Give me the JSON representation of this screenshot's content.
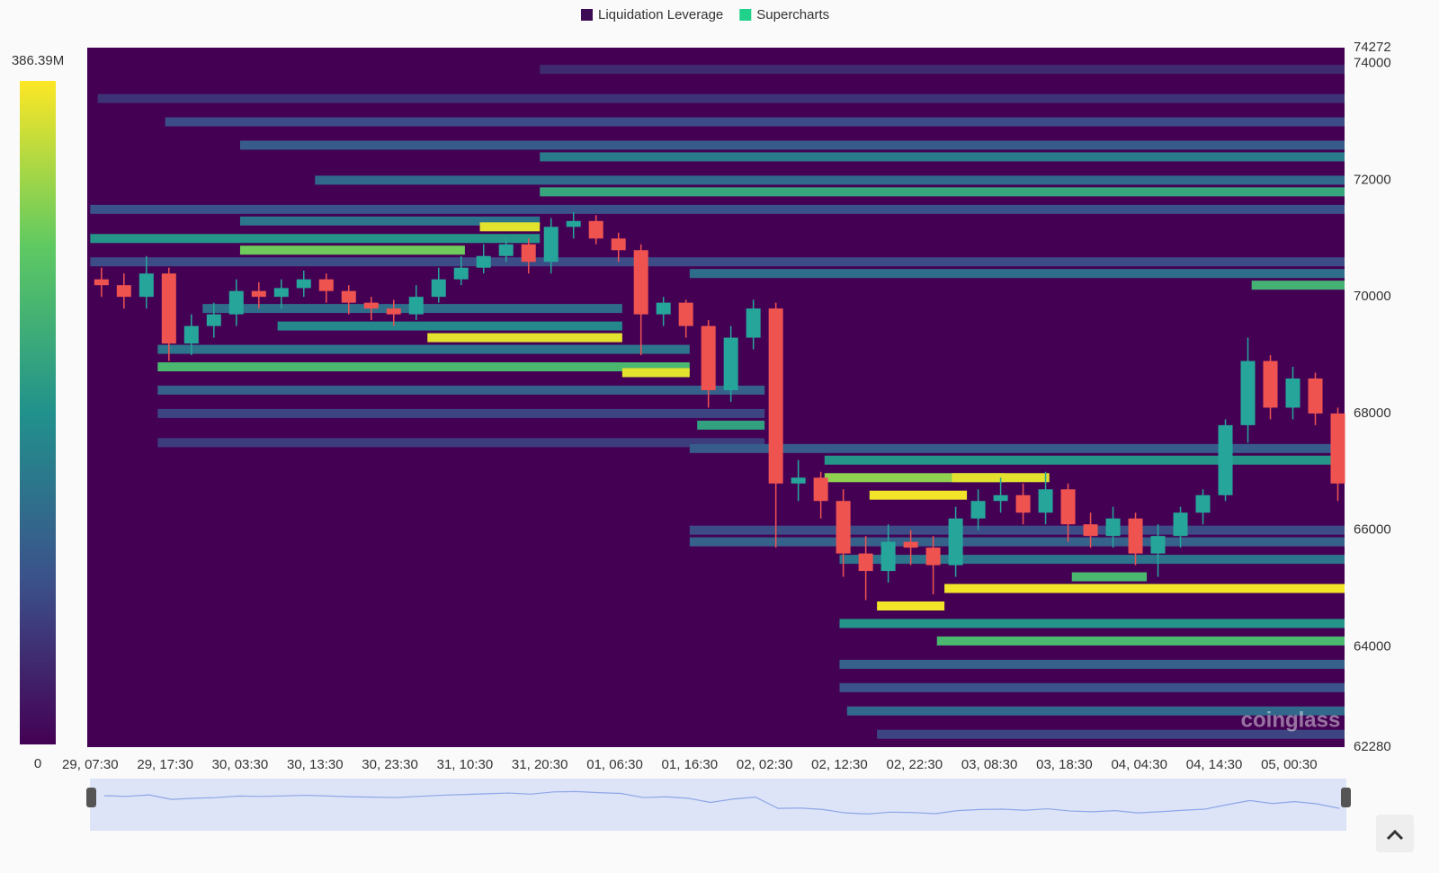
{
  "chart_data": {
    "type": "liquidation-heatmap",
    "legend": [
      {
        "name": "Liquidation Leverage",
        "color": "#3d0a55"
      },
      {
        "name": "Supercharts",
        "color": "#1fd18a"
      }
    ],
    "watermark": "coinglass",
    "colorbar": {
      "ticks": [
        0,
        {
          "value": 386.39,
          "label": "386.39M"
        }
      ],
      "colors": [
        "#440154",
        "#3b528b",
        "#21918c",
        "#5ec962",
        "#fde725"
      ]
    },
    "xlim": [
      -0.4,
      167.4
    ],
    "xticks": [
      {
        "value": 0,
        "label": "29, 07:30"
      },
      {
        "value": 10,
        "label": "29, 17:30"
      },
      {
        "value": 20,
        "label": "30, 03:30"
      },
      {
        "value": 30,
        "label": "30, 13:30"
      },
      {
        "value": 40,
        "label": "30, 23:30"
      },
      {
        "value": 50,
        "label": "31, 10:30"
      },
      {
        "value": 60,
        "label": "31, 20:30"
      },
      {
        "value": 70,
        "label": "01, 06:30"
      },
      {
        "value": 80,
        "label": "01, 16:30"
      },
      {
        "value": 90,
        "label": "02, 02:30"
      },
      {
        "value": 100,
        "label": "02, 12:30"
      },
      {
        "value": 110,
        "label": "02, 22:30"
      },
      {
        "value": 120,
        "label": "03, 08:30"
      },
      {
        "value": 130,
        "label": "03, 18:30"
      },
      {
        "value": 140,
        "label": "04, 04:30"
      },
      {
        "value": 150,
        "label": "04, 14:30"
      },
      {
        "value": 160,
        "label": "05, 00:30"
      }
    ],
    "ylim": [
      62280,
      74272
    ],
    "yticks": [
      62280,
      64000,
      66000,
      68000,
      70000,
      72000,
      74000,
      74272
    ],
    "bands": {
      "price": [
        73900,
        73400,
        73000,
        72600,
        72400,
        72000,
        71800,
        71500,
        71300,
        71200,
        71000,
        70800,
        70600,
        70400,
        70200,
        69800,
        69500,
        69300,
        69100,
        68800,
        68700,
        68400,
        68000,
        67800,
        67500,
        67400,
        67200,
        66900,
        66900,
        66600,
        66000,
        65800,
        65500,
        65200,
        65000,
        64700,
        64400,
        64100,
        63700,
        63300,
        62900,
        62500
      ],
      "start": [
        60,
        1,
        10,
        20,
        60,
        30,
        60,
        0,
        20,
        52,
        0,
        20,
        0,
        80,
        155,
        15,
        25,
        45,
        9,
        9,
        71,
        9,
        9,
        81,
        9,
        80,
        98,
        98,
        115,
        104,
        80,
        80,
        100,
        131,
        114,
        105,
        100,
        113,
        100,
        100,
        101,
        105
      ],
      "end": [
        167.4,
        167.4,
        167.4,
        167.4,
        167.4,
        167.4,
        167.4,
        167.4,
        60,
        60,
        60,
        50,
        167.4,
        167.4,
        167.4,
        71,
        71,
        71,
        80,
        80,
        80,
        90,
        90,
        90,
        90,
        167.4,
        167.4,
        122,
        128,
        117,
        167.4,
        167.4,
        167.4,
        141,
        167.4,
        114,
        167.4,
        167.4,
        167.4,
        167.4,
        167.4,
        167.4
      ],
      "values": [
        50,
        60,
        90,
        110,
        160,
        130,
        230,
        100,
        150,
        370,
        200,
        300,
        90,
        140,
        250,
        140,
        180,
        370,
        150,
        260,
        370,
        120,
        80,
        220,
        70,
        110,
        200,
        320,
        370,
        380,
        90,
        120,
        150,
        260,
        380,
        380,
        200,
        260,
        120,
        100,
        130,
        80
      ]
    },
    "candles": {
      "up_color": "#26a69a",
      "down_color": "#ef5350",
      "x": [
        1.5,
        4.5,
        7.5,
        10.5,
        13.5,
        16.5,
        19.5,
        22.5,
        25.5,
        28.5,
        31.5,
        34.5,
        37.5,
        40.5,
        43.5,
        46.5,
        49.5,
        52.5,
        55.5,
        58.5,
        61.5,
        64.5,
        67.5,
        70.5,
        73.5,
        76.5,
        79.5,
        82.5,
        85.5,
        88.5,
        91.5,
        94.5,
        97.5,
        100.5,
        103.5,
        106.5,
        109.5,
        112.5,
        115.5,
        118.5,
        121.5,
        124.5,
        127.5,
        130.5,
        133.5,
        136.5,
        139.5,
        142.5,
        145.5,
        148.5,
        151.5,
        154.5,
        157.5,
        160.5,
        163.5,
        166.5
      ],
      "open": [
        70300,
        70200,
        70000,
        70400,
        69200,
        69500,
        69700,
        70100,
        70000,
        70150,
        70300,
        70100,
        69900,
        69800,
        69700,
        70000,
        70300,
        70500,
        70700,
        70900,
        70600,
        71200,
        71300,
        71000,
        70800,
        69700,
        69900,
        69500,
        68400,
        69300,
        69800,
        66800,
        66900,
        66500,
        65600,
        65300,
        65800,
        65700,
        65400,
        66200,
        66500,
        66600,
        66300,
        66700,
        66100,
        65900,
        66200,
        65600,
        65900,
        66300,
        66600,
        67800,
        68900,
        68100,
        68600,
        68000
      ],
      "high": [
        70500,
        70400,
        70700,
        70500,
        69700,
        69900,
        70300,
        70250,
        70300,
        70450,
        70400,
        70200,
        70000,
        69950,
        70200,
        70500,
        70700,
        70900,
        71000,
        71000,
        71350,
        71450,
        71400,
        71100,
        70900,
        70000,
        69950,
        69600,
        69500,
        69950,
        69900,
        67200,
        67000,
        66700,
        65900,
        66100,
        66000,
        65900,
        66400,
        66700,
        66900,
        66800,
        67000,
        66800,
        66300,
        66400,
        66300,
        66100,
        66400,
        66700,
        67900,
        69300,
        69000,
        68800,
        68700,
        68100
      ],
      "low": [
        70000,
        69800,
        69800,
        68900,
        69000,
        69300,
        69500,
        69800,
        69800,
        70000,
        69900,
        69700,
        69600,
        69500,
        69600,
        69900,
        70200,
        70400,
        70600,
        70400,
        70400,
        71000,
        70900,
        70600,
        69000,
        69500,
        69300,
        68100,
        68200,
        69100,
        65700,
        66500,
        66200,
        65200,
        64800,
        65100,
        65400,
        64900,
        65200,
        66000,
        66300,
        66100,
        66100,
        65800,
        65700,
        65700,
        65400,
        65200,
        65700,
        66100,
        66500,
        67500,
        67900,
        67900,
        67800,
        66500
      ],
      "close": [
        70200,
        70000,
        70400,
        69200,
        69500,
        69700,
        70100,
        70000,
        70150,
        70300,
        70100,
        69900,
        69800,
        69700,
        70000,
        70300,
        70500,
        70700,
        70900,
        70600,
        71200,
        71300,
        71000,
        70800,
        69700,
        69900,
        69500,
        68400,
        69300,
        69800,
        66800,
        66900,
        66500,
        65600,
        65300,
        65800,
        65700,
        65400,
        66200,
        66500,
        66600,
        66300,
        66700,
        66100,
        65900,
        66200,
        65600,
        65900,
        66300,
        66600,
        67800,
        68900,
        68100,
        68600,
        68000,
        66800
      ]
    }
  }
}
